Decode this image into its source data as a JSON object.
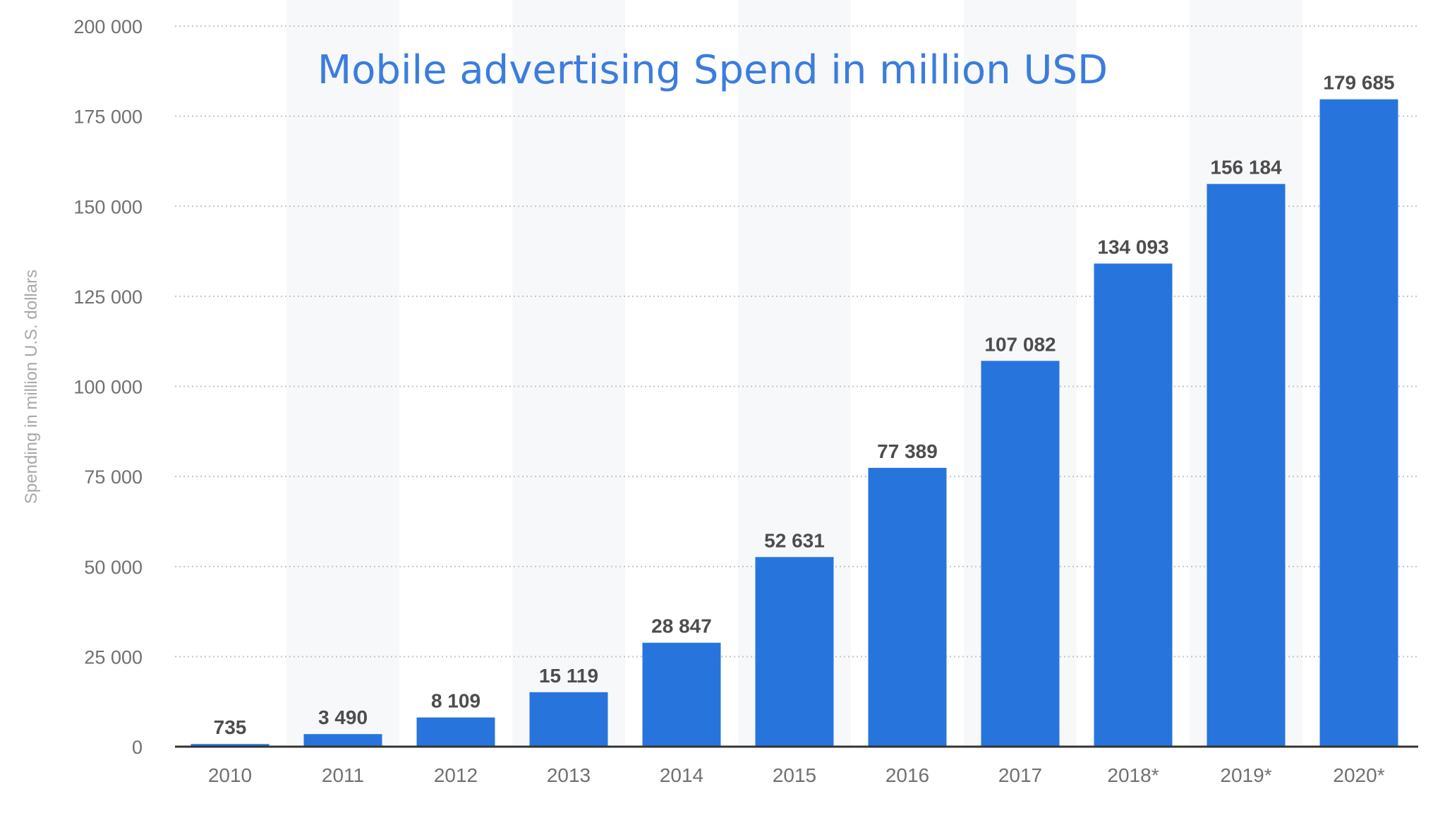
{
  "chart_data": {
    "type": "bar",
    "title": "Mobile advertising Spend in million USD",
    "xlabel": "",
    "ylabel": "Spending in million U.S. dollars",
    "ylim": [
      0,
      200000
    ],
    "yticks": [
      0,
      25000,
      50000,
      75000,
      100000,
      125000,
      150000,
      175000,
      200000
    ],
    "ytick_labels": [
      "0",
      "25 000",
      "50 000",
      "75 000",
      "100 000",
      "125 000",
      "150 000",
      "175 000",
      "200 000"
    ],
    "categories": [
      "2010",
      "2011",
      "2012",
      "2013",
      "2014",
      "2015",
      "2016",
      "2017",
      "2018*",
      "2019*",
      "2020*"
    ],
    "values": [
      735,
      3490,
      8109,
      15119,
      28847,
      52631,
      77389,
      107082,
      134093,
      156184,
      179685
    ],
    "value_labels": [
      "735",
      "3 490",
      "8 109",
      "15 119",
      "28 847",
      "52 631",
      "77 389",
      "107 082",
      "134 093",
      "156 184",
      "179 685"
    ],
    "grid": true,
    "colors": {
      "bar": "#2874dd",
      "title": "#3b7ddd",
      "band": "#f7f8fa",
      "grid": "#c4c4c4",
      "axis": "#333333",
      "tick_text": "#707070",
      "value_text": "#4d4d4d",
      "ylabel_text": "#a8a8a8"
    }
  }
}
